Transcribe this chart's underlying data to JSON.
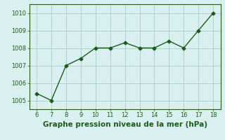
{
  "x": [
    6,
    7,
    8,
    9,
    10,
    11,
    12,
    13,
    14,
    15,
    16,
    17,
    18
  ],
  "y": [
    1005.4,
    1005.0,
    1007.0,
    1007.4,
    1008.0,
    1008.0,
    1008.3,
    1008.0,
    1008.0,
    1008.4,
    1008.0,
    1009.0,
    1010.0
  ],
  "line_color": "#1a5c1a",
  "marker": "D",
  "marker_size": 2.5,
  "linewidth": 1.0,
  "title": "Graphe pression niveau de la mer (hPa)",
  "xlim": [
    5.5,
    18.5
  ],
  "ylim": [
    1004.5,
    1010.5
  ],
  "yticks": [
    1005,
    1006,
    1007,
    1008,
    1009,
    1010
  ],
  "xticks": [
    6,
    7,
    8,
    9,
    10,
    11,
    12,
    13,
    14,
    15,
    16,
    17,
    18
  ],
  "background_color": "#daf0f0",
  "grid_color": "#aacccc",
  "title_color": "#1a5c1a",
  "title_fontsize": 7.5,
  "tick_fontsize": 6.0
}
